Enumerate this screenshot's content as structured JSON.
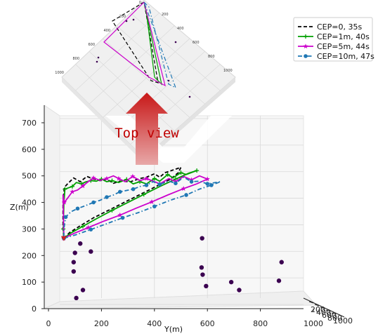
{
  "chart_data": [
    {
      "type": "line3d",
      "view": "main",
      "xlabel": "Y(m)",
      "ylabel": "Z(m)",
      "x_ticks": [
        "0",
        "200",
        "400",
        "600",
        "800",
        "1000"
      ],
      "y_ticks": [
        "0",
        "100",
        "200",
        "300",
        "400",
        "500",
        "600",
        "700"
      ],
      "depth_tick_labels": [
        "200",
        "400",
        "600",
        "800",
        "1000"
      ],
      "xlim": [
        0,
        1000
      ],
      "ylim": [
        0,
        750
      ],
      "legend_position": "upper-right",
      "series": [
        {
          "name": "CEP=0, 35s",
          "color": "#000000",
          "style": "dashed",
          "marker": "none",
          "points": [
            [
              58,
              265
            ],
            [
              80,
              287
            ],
            [
              120,
              312
            ],
            [
              170,
              342
            ],
            [
              230,
              372
            ],
            [
              290,
              402
            ],
            [
              350,
              432
            ],
            [
              410,
              462
            ],
            [
              460,
              487
            ],
            [
              490,
              512
            ],
            [
              500,
              532
            ],
            [
              470,
              522
            ],
            [
              440,
              512
            ],
            [
              420,
              495
            ],
            [
              400,
              508
            ],
            [
              370,
              495
            ],
            [
              345,
              490
            ],
            [
              310,
              478
            ],
            [
              270,
              480
            ],
            [
              245,
              472
            ],
            [
              220,
              488
            ],
            [
              195,
              482
            ],
            [
              170,
              488
            ],
            [
              145,
              498
            ],
            [
              120,
              478
            ],
            [
              95,
              492
            ],
            [
              72,
              470
            ],
            [
              60,
              457
            ],
            [
              55,
              400
            ],
            [
              55,
              300
            ],
            [
              58,
              265
            ]
          ]
        },
        {
          "name": "CEP=1m, 40s",
          "color": "#00a000",
          "style": "solid",
          "marker": "plus",
          "points": [
            [
              58,
              265
            ],
            [
              85,
              285
            ],
            [
              130,
              310
            ],
            [
              180,
              338
            ],
            [
              240,
              370
            ],
            [
              300,
              400
            ],
            [
              360,
              430
            ],
            [
              420,
              460
            ],
            [
              480,
              488
            ],
            [
              530,
              510
            ],
            [
              560,
              520
            ],
            [
              520,
              505
            ],
            [
              500,
              512
            ],
            [
              470,
              493
            ],
            [
              450,
              505
            ],
            [
              420,
              480
            ],
            [
              400,
              490
            ],
            [
              370,
              470
            ],
            [
              345,
              478
            ],
            [
              320,
              470
            ],
            [
              295,
              487
            ],
            [
              265,
              475
            ],
            [
              240,
              482
            ],
            [
              220,
              478
            ],
            [
              200,
              488
            ],
            [
              180,
              480
            ],
            [
              160,
              482
            ],
            [
              140,
              477
            ],
            [
              125,
              470
            ],
            [
              105,
              475
            ],
            [
              90,
              460
            ],
            [
              75,
              455
            ],
            [
              62,
              450
            ],
            [
              58,
              400
            ],
            [
              56,
              300
            ],
            [
              58,
              265
            ]
          ]
        },
        {
          "name": "CEP=5m, 44s",
          "color": "#cc00cc",
          "style": "solid",
          "marker": "star",
          "points": [
            [
              58,
              265
            ],
            [
              95,
              283
            ],
            [
              150,
              305
            ],
            [
              210,
              330
            ],
            [
              270,
              352
            ],
            [
              330,
              378
            ],
            [
              390,
              402
            ],
            [
              450,
              428
            ],
            [
              510,
              452
            ],
            [
              560,
              470
            ],
            [
              600,
              488
            ],
            [
              570,
              500
            ],
            [
              540,
              485
            ],
            [
              510,
              498
            ],
            [
              480,
              478
            ],
            [
              455,
              490
            ],
            [
              420,
              470
            ],
            [
              400,
              478
            ],
            [
              370,
              490
            ],
            [
              345,
              482
            ],
            [
              318,
              498
            ],
            [
              290,
              478
            ],
            [
              265,
              490
            ],
            [
              245,
              500
            ],
            [
              220,
              490
            ],
            [
              195,
              483
            ],
            [
              170,
              492
            ],
            [
              150,
              478
            ],
            [
              130,
              462
            ],
            [
              110,
              447
            ],
            [
              90,
              440
            ],
            [
              75,
              420
            ],
            [
              60,
              400
            ],
            [
              55,
              430
            ],
            [
              58,
              265
            ]
          ]
        },
        {
          "name": "CEP=10m, 47s",
          "color": "#1f77b4",
          "style": "dashdot",
          "marker": "circle",
          "points": [
            [
              58,
              265
            ],
            [
              100,
              277
            ],
            [
              160,
              298
            ],
            [
              220,
              320
            ],
            [
              280,
              342
            ],
            [
              340,
              362
            ],
            [
              400,
              385
            ],
            [
              460,
              408
            ],
            [
              520,
              428
            ],
            [
              570,
              450
            ],
            [
              615,
              465
            ],
            [
              650,
              478
            ],
            [
              600,
              470
            ],
            [
              570,
              480
            ],
            [
              540,
              478
            ],
            [
              510,
              495
            ],
            [
              480,
              472
            ],
            [
              455,
              480
            ],
            [
              420,
              468
            ],
            [
              395,
              478
            ],
            [
              370,
              465
            ],
            [
              345,
              460
            ],
            [
              320,
              450
            ],
            [
              295,
              445
            ],
            [
              270,
              440
            ],
            [
              245,
              428
            ],
            [
              220,
              420
            ],
            [
              195,
              408
            ],
            [
              170,
              400
            ],
            [
              140,
              388
            ],
            [
              110,
              377
            ],
            [
              85,
              365
            ],
            [
              65,
              345
            ],
            [
              58,
              300
            ],
            [
              58,
              265
            ]
          ]
        }
      ],
      "scatter_points": [
        [
          105,
          40
        ],
        [
          130,
          70
        ],
        [
          95,
          140
        ],
        [
          95,
          175
        ],
        [
          100,
          210
        ],
        [
          120,
          245
        ],
        [
          160,
          215
        ],
        [
          580,
          265
        ],
        [
          578,
          155
        ],
        [
          582,
          128
        ],
        [
          595,
          85
        ],
        [
          690,
          100
        ],
        [
          720,
          70
        ],
        [
          870,
          105
        ],
        [
          880,
          175
        ]
      ],
      "scatter_color": "#3b0050"
    },
    {
      "type": "line3d",
      "view": "top-view-inset",
      "tick_labels_left": [
        "0",
        "200",
        "400",
        "600",
        "800",
        "1000"
      ],
      "tick_labels_right": [
        "200",
        "400",
        "600",
        "800",
        "1000"
      ]
    }
  ],
  "annotation": {
    "caption": "Top view",
    "arrow_color_top": "#d02020",
    "arrow_color_bottom": "#e0a0a0"
  },
  "legend": {
    "entries": [
      "CEP=0, 35s",
      "CEP=1m, 40s",
      "CEP=5m, 44s",
      "CEP=10m, 47s"
    ]
  }
}
